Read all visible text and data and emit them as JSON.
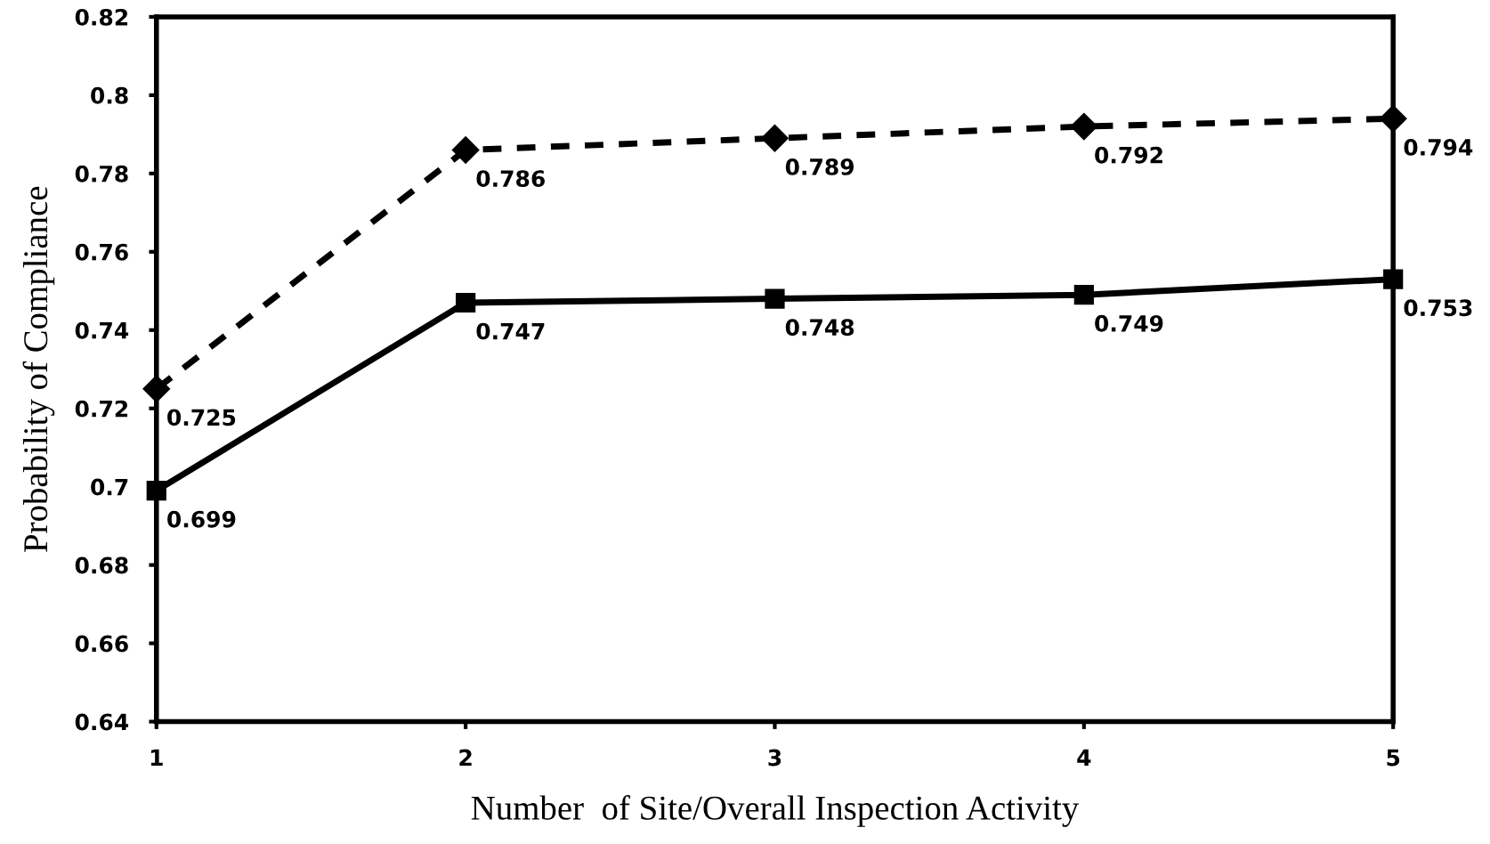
{
  "chart_data": {
    "type": "line",
    "xlabel": "Number  of Site/Overall Inspection Activity",
    "ylabel": "Probability of Compliance",
    "x": [
      1,
      2,
      3,
      4,
      5
    ],
    "xlim": [
      1,
      5
    ],
    "xticks": [
      1,
      2,
      3,
      4,
      5
    ],
    "ylim": [
      0.64,
      0.82
    ],
    "yticks": [
      {
        "value": 0.64,
        "label": "0.64"
      },
      {
        "value": 0.66,
        "label": "0.66"
      },
      {
        "value": 0.68,
        "label": "0.68"
      },
      {
        "value": 0.7,
        "label": "0.7"
      },
      {
        "value": 0.72,
        "label": "0.72"
      },
      {
        "value": 0.74,
        "label": "0.74"
      },
      {
        "value": 0.76,
        "label": "0.76"
      },
      {
        "value": 0.78,
        "label": "0.78"
      },
      {
        "value": 0.8,
        "label": "0.8"
      },
      {
        "value": 0.82,
        "label": "0.82"
      }
    ],
    "series": [
      {
        "color": "#000000",
        "marker": "diamond",
        "line_style": "dashed",
        "values": [
          0.725,
          0.786,
          0.789,
          0.792,
          0.794
        ]
      },
      {
        "color": "#000000",
        "marker": "square",
        "line_style": "solid",
        "values": [
          0.699,
          0.747,
          0.748,
          0.749,
          0.753
        ]
      }
    ],
    "data_labels": true
  }
}
